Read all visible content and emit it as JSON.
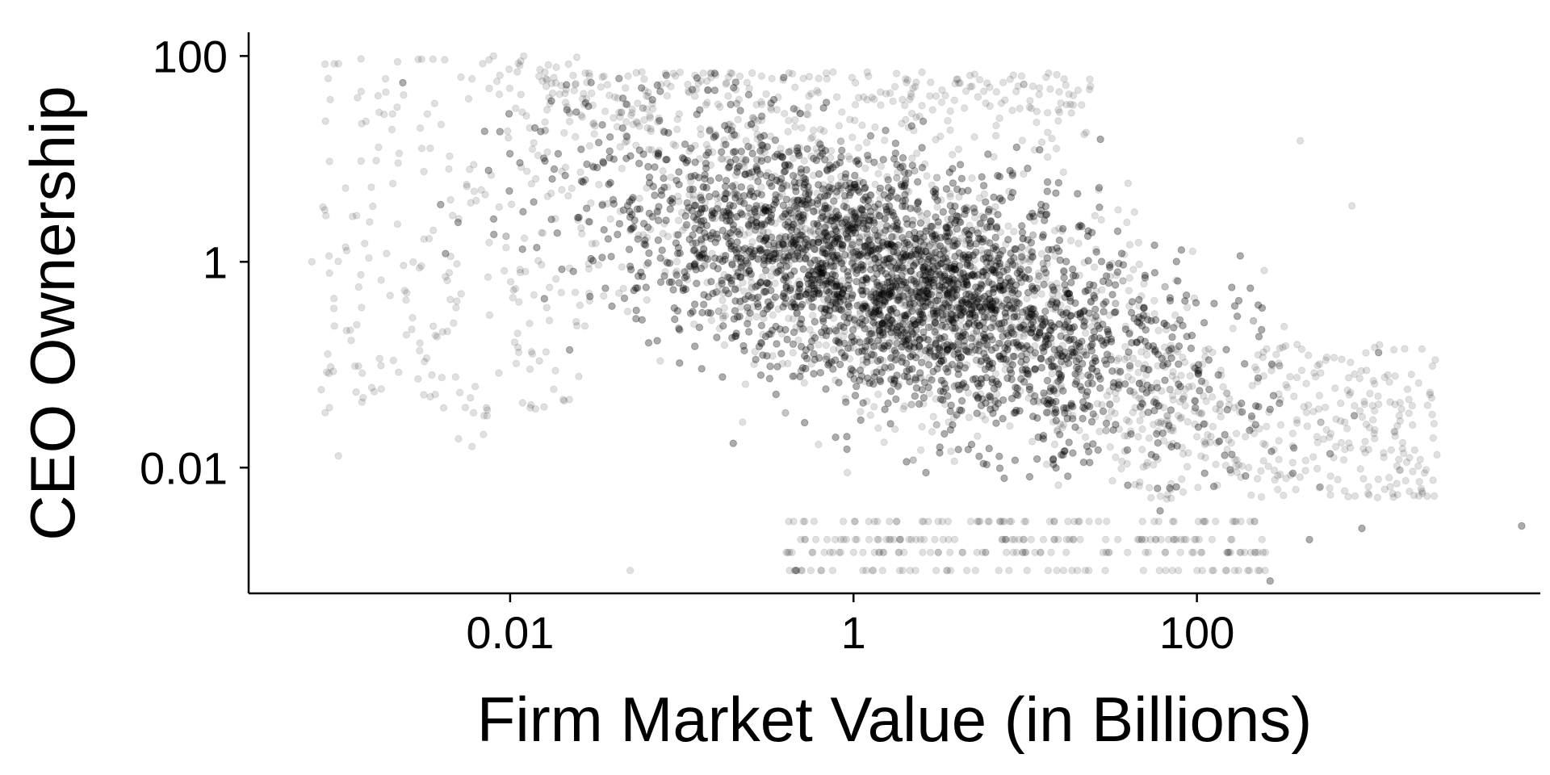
{
  "chart_data": {
    "type": "scatter",
    "title": "",
    "xlabel": "Firm Market Value (in Billions)",
    "ylabel": "CEO Ownership",
    "x_scale": "log",
    "y_scale": "log",
    "xlim": [
      0.0003,
      10000
    ],
    "ylim": [
      0.0006,
      170
    ],
    "x_ticks": [
      {
        "value": 0.01,
        "label": "0.01"
      },
      {
        "value": 1,
        "label": "1"
      },
      {
        "value": 100,
        "label": "100"
      }
    ],
    "y_ticks": [
      {
        "value": 0.01,
        "label": "0.01"
      },
      {
        "value": 1,
        "label": "1"
      },
      {
        "value": 100,
        "label": "100"
      }
    ],
    "grid": false,
    "legend": "none",
    "marker_color": "#000000",
    "marker_alpha": 0.12,
    "series": [
      {
        "points_summary": "Several thousand firm observations; dense cloud centred near market value 1–3 billion and CEO ownership ~0.5–1, with negative correlation between firm size and CEO ownership.",
        "sample_points": [
          [
            0.0007,
            1.0
          ],
          [
            0.0011,
            5.2
          ],
          [
            0.001,
            0.013
          ],
          [
            0.002,
            0.47
          ],
          [
            0.0025,
            0.5
          ],
          [
            0.004,
            0.075
          ],
          [
            0.005,
            0.019
          ],
          [
            0.006,
            0.016
          ],
          [
            0.007,
            0.021
          ],
          [
            0.0045,
            4.0
          ],
          [
            0.008,
            100
          ],
          [
            0.012,
            100
          ],
          [
            0.011,
            70
          ],
          [
            0.006,
            60
          ],
          [
            0.02,
            5.0
          ],
          [
            0.03,
            1.5
          ],
          [
            0.05,
            2.0
          ],
          [
            0.08,
            0.8
          ],
          [
            0.1,
            3.0
          ],
          [
            0.15,
            1.2
          ],
          [
            0.2,
            4.5
          ],
          [
            0.3,
            0.5
          ],
          [
            0.5,
            20
          ],
          [
            0.7,
            60
          ],
          [
            1.0,
            1.0
          ],
          [
            1.5,
            0.6
          ],
          [
            2.0,
            0.4
          ],
          [
            3.0,
            0.35
          ],
          [
            5.0,
            0.2
          ],
          [
            8.0,
            0.15
          ],
          [
            10.0,
            0.1
          ],
          [
            20.0,
            0.08
          ],
          [
            30.0,
            0.05
          ],
          [
            50.0,
            0.1
          ],
          [
            80.0,
            0.03
          ],
          [
            100.0,
            0.02
          ],
          [
            150.0,
            0.015
          ],
          [
            200.0,
            0.01
          ],
          [
            300.0,
            0.012
          ],
          [
            500.0,
            0.02
          ],
          [
            1000.0,
            0.015
          ],
          [
            1500.0,
            0.012
          ],
          [
            2000.0,
            0.012
          ],
          [
            800.0,
            3.5
          ],
          [
            400.0,
            15
          ],
          [
            1.0,
            0.0015
          ],
          [
            10.0,
            0.0015
          ],
          [
            0.5,
            0.001
          ],
          [
            50.0,
            0.002
          ],
          [
            0.05,
            0.001
          ]
        ]
      }
    ]
  }
}
